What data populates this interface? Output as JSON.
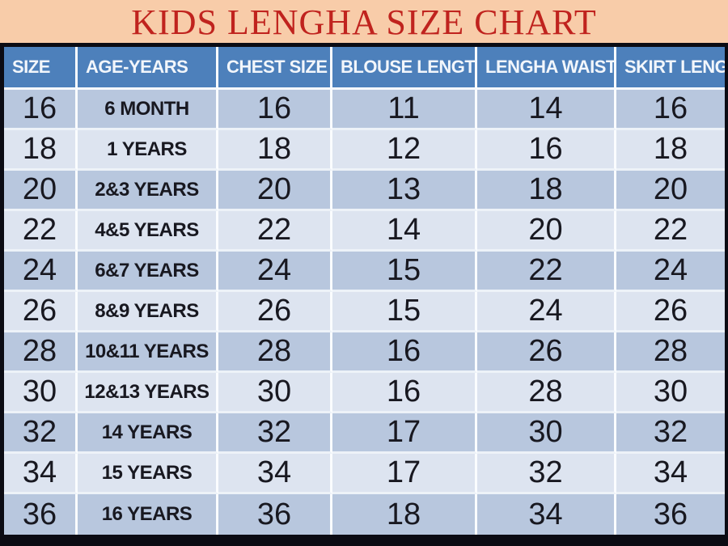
{
  "title": "KIDS LENGHA SIZE CHART",
  "colors": {
    "title_bg": "#f8cca9",
    "title_text": "#c0231e",
    "header_bg": "#4d80bb",
    "header_text": "#f2f6fb",
    "row_odd_bg": "#b8c7de",
    "row_even_bg": "#dde4f0",
    "cell_text": "#181820",
    "frame_border": "#0b0b13",
    "grid_line": "#fafcfe"
  },
  "chart_data": {
    "type": "table",
    "title": "KIDS LENGHA SIZE CHART",
    "columns": [
      "SIZE",
      "AGE-YEARS",
      "CHEST SIZE",
      "BLOUSE LENGTH",
      "LENGHA WAIST",
      "SKIRT LENGTH"
    ],
    "rows": [
      [
        "16",
        "6 MONTH",
        "16",
        "11",
        "14",
        "16"
      ],
      [
        "18",
        "1 YEARS",
        "18",
        "12",
        "16",
        "18"
      ],
      [
        "20",
        "2&3 YEARS",
        "20",
        "13",
        "18",
        "20"
      ],
      [
        "22",
        "4&5 YEARS",
        "22",
        "14",
        "20",
        "22"
      ],
      [
        "24",
        "6&7 YEARS",
        "24",
        "15",
        "22",
        "24"
      ],
      [
        "26",
        "8&9 YEARS",
        "26",
        "15",
        "24",
        "26"
      ],
      [
        "28",
        "10&11 YEARS",
        "28",
        "16",
        "26",
        "28"
      ],
      [
        "30",
        "12&13 YEARS",
        "30",
        "16",
        "28",
        "30"
      ],
      [
        "32",
        "14 YEARS",
        "32",
        "17",
        "30",
        "32"
      ],
      [
        "34",
        "15 YEARS",
        "34",
        "17",
        "32",
        "34"
      ],
      [
        "36",
        "16 YEARS",
        "36",
        "18",
        "34",
        "36"
      ]
    ]
  }
}
